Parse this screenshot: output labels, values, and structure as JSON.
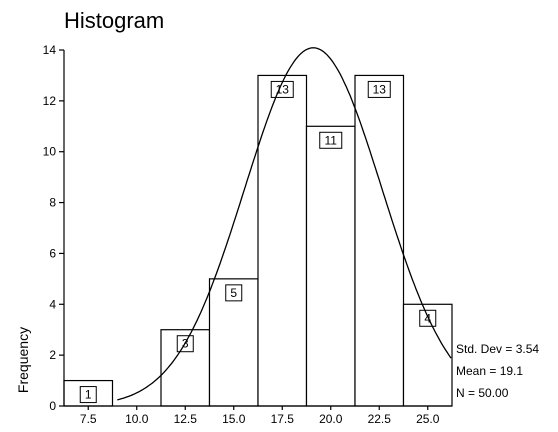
{
  "chart_data": {
    "type": "bar",
    "title": "Histogram",
    "xlabel": "",
    "ylabel": "Frequency",
    "categories": [
      "7.5",
      "10.0",
      "12.5",
      "15.0",
      "17.5",
      "20.0",
      "22.5",
      "25.0"
    ],
    "x": [
      7.5,
      10.0,
      12.5,
      15.0,
      17.5,
      20.0,
      22.5,
      25.0
    ],
    "values": [
      1,
      0,
      3,
      5,
      13,
      11,
      13,
      4
    ],
    "bin_width": 2.5,
    "data_labels": [
      "1",
      "",
      "3",
      "5",
      "13",
      "11",
      "13",
      "4"
    ],
    "xlim": [
      6.25,
      26.25
    ],
    "ylim": [
      0,
      14
    ],
    "yticks": [
      0,
      2,
      4,
      6,
      8,
      10,
      12,
      14
    ],
    "grid": false,
    "overlay": {
      "type": "normal-curve",
      "mean": 19.1,
      "std": 3.54,
      "n": 50
    },
    "stats": {
      "std_dev": "Std. Dev = 3.54",
      "mean": "Mean = 19.1",
      "n": "N = 50.00"
    }
  }
}
